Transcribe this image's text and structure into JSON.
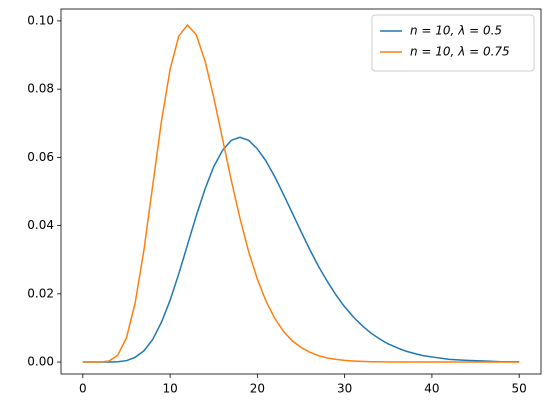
{
  "chart_data": {
    "type": "line",
    "x": [
      0,
      1,
      2,
      3,
      4,
      5,
      6,
      7,
      8,
      9,
      10,
      11,
      12,
      13,
      14,
      15,
      16,
      17,
      18,
      19,
      20,
      21,
      22,
      23,
      24,
      25,
      26,
      27,
      28,
      29,
      30,
      31,
      32,
      33,
      34,
      35,
      36,
      37,
      38,
      39,
      40,
      42,
      44,
      46,
      48,
      50
    ],
    "series": [
      {
        "name": "n = 10, λ = 0.5",
        "color": "#1f77b4",
        "values": [
          0,
          0,
          0,
          0,
          0.0001,
          0.0004,
          0.0014,
          0.0033,
          0.0066,
          0.0116,
          0.0181,
          0.0259,
          0.0344,
          0.0429,
          0.0507,
          0.0573,
          0.062,
          0.065,
          0.0659,
          0.065,
          0.0625,
          0.0589,
          0.0543,
          0.0491,
          0.0437,
          0.0383,
          0.033,
          0.0281,
          0.0237,
          0.0197,
          0.0162,
          0.0132,
          0.0107,
          0.0085,
          0.0068,
          0.0053,
          0.0042,
          0.0032,
          0.0025,
          0.0019,
          0.0015,
          0.0008,
          0.0005,
          0.0003,
          0.0001,
          0.0001
        ]
      },
      {
        "name": "n = 10, λ = 0.75",
        "color": "#ff7f0e",
        "values": [
          0,
          0,
          0,
          0.0003,
          0.002,
          0.0071,
          0.0174,
          0.0328,
          0.0516,
          0.0704,
          0.0858,
          0.0956,
          0.0988,
          0.0959,
          0.0883,
          0.0776,
          0.0655,
          0.0534,
          0.0422,
          0.0324,
          0.0243,
          0.0178,
          0.0128,
          0.009,
          0.0062,
          0.0043,
          0.0029,
          0.0019,
          0.0012,
          0.0008,
          0.0005,
          0.0003,
          0.0002,
          0.0001,
          0.0001,
          0,
          0,
          0,
          0,
          0,
          0,
          0,
          0,
          0,
          0,
          0
        ]
      }
    ],
    "xlim": [
      -2.5,
      52.5
    ],
    "xticks": [
      0,
      10,
      20,
      30,
      40,
      50
    ],
    "ylim": [
      -0.0035,
      0.1035
    ],
    "yticks": [
      {
        "value": 0,
        "label": "0.00"
      },
      {
        "value": 0.02,
        "label": "0.02"
      },
      {
        "value": 0.04,
        "label": "0.04"
      },
      {
        "value": 0.06,
        "label": "0.06"
      },
      {
        "value": 0.08,
        "label": "0.08"
      },
      {
        "value": 0.1,
        "label": "0.10"
      }
    ],
    "legend": "upper right"
  }
}
